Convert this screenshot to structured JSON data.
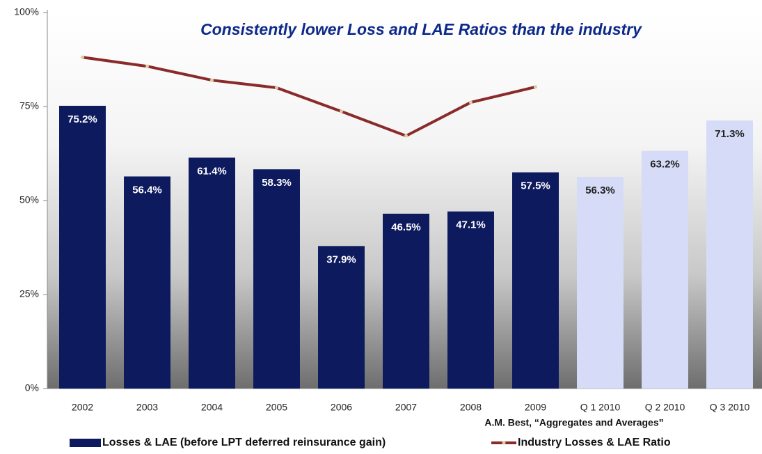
{
  "chart_data": {
    "type": "bar_line",
    "title": "Consistently lower Loss and LAE Ratios than the industry",
    "annotation": "A.M. Best, “Aggregates and Averages”",
    "categories": [
      "2002",
      "2003",
      "2004",
      "2005",
      "2006",
      "2007",
      "2008",
      "2009",
      "Q 1 2010",
      "Q 2 2010",
      "Q 3 2010"
    ],
    "ylim": [
      0,
      100
    ],
    "yticks": [
      {
        "value": 0,
        "label": "0%"
      },
      {
        "value": 25,
        "label": "25%"
      },
      {
        "value": 50,
        "label": "50%"
      },
      {
        "value": 75,
        "label": "75%"
      },
      {
        "value": 100,
        "label": "100%"
      }
    ],
    "series": [
      {
        "name": "Losses & LAE (before LPT deferred reinsurance gain)",
        "kind": "bar",
        "color": "#0d1a5e",
        "colors": [
          "#0d1a5e",
          "#0d1a5e",
          "#0d1a5e",
          "#0d1a5e",
          "#0d1a5e",
          "#0d1a5e",
          "#0d1a5e",
          "#0d1a5e",
          "#d6dcf7",
          "#d6dcf7",
          "#d6dcf7"
        ],
        "value_label_colors": [
          "#ffffff",
          "#ffffff",
          "#ffffff",
          "#ffffff",
          "#ffffff",
          "#ffffff",
          "#ffffff",
          "#ffffff",
          "#222222",
          "#222222",
          "#222222"
        ],
        "values": [
          75.2,
          56.4,
          61.4,
          58.3,
          37.9,
          46.5,
          47.1,
          57.5,
          56.3,
          63.2,
          71.3
        ],
        "value_labels": [
          "75.2%",
          "56.4%",
          "61.4%",
          "58.3%",
          "37.9%",
          "46.5%",
          "47.1%",
          "57.5%",
          "56.3%",
          "63.2%",
          "71.3%"
        ]
      },
      {
        "name": "Industry Losses & LAE Ratio",
        "kind": "line",
        "color": "#8b2a2a",
        "marker_color": "#d8cfa0",
        "values": [
          88.1,
          85.7,
          82,
          80,
          73.7,
          67.2,
          76.1,
          80.2,
          null,
          null,
          null
        ]
      }
    ]
  }
}
